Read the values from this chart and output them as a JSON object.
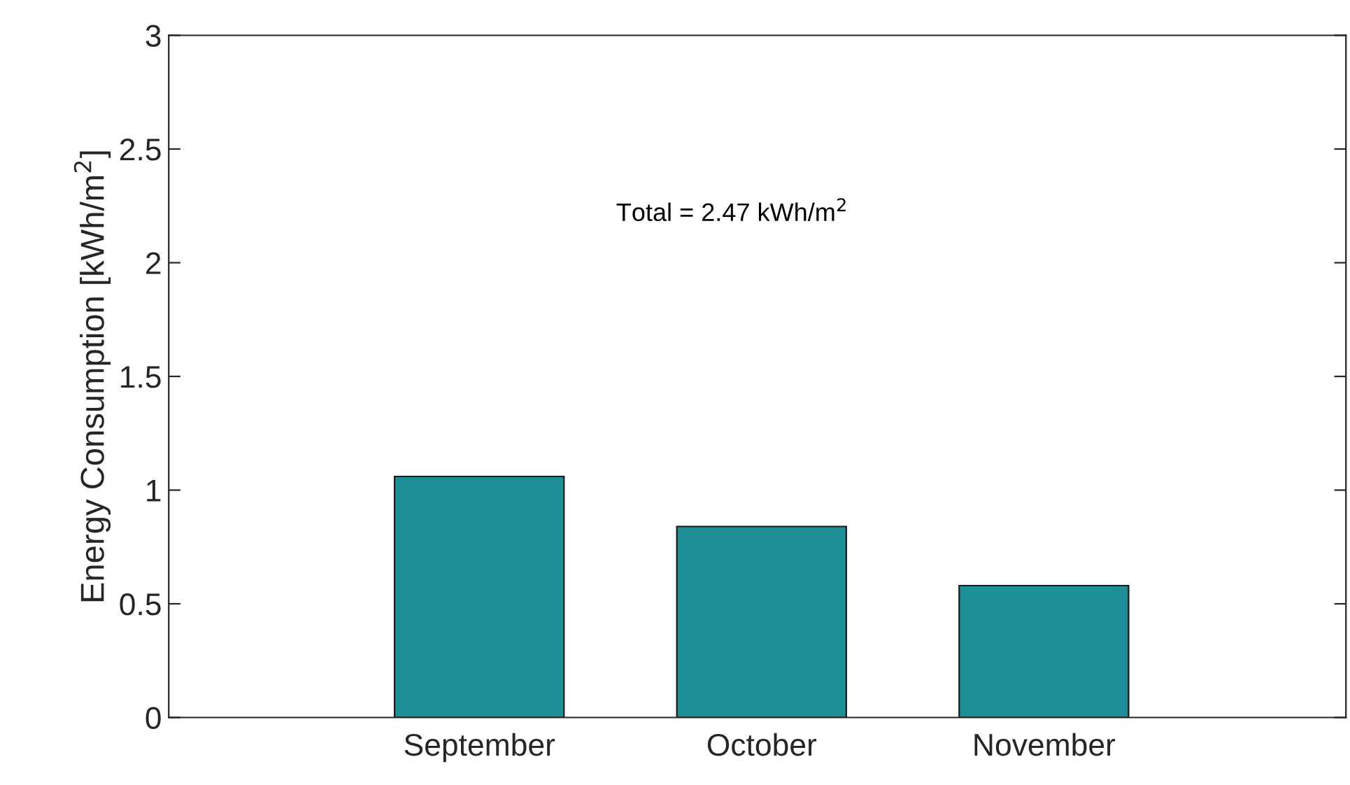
{
  "chart_data": {
    "type": "bar",
    "ylabel": "Energy Consumption [kWh/m$^{2}$]",
    "categories": [
      "September",
      "October",
      "November"
    ],
    "values": [
      1.06,
      0.84,
      0.58
    ],
    "color": "#1e8f96",
    "ylim": [
      0,
      3
    ],
    "yticks": [
      0,
      0.5,
      1,
      1.5,
      2,
      2.5,
      3
    ],
    "grid": false,
    "annotations": [
      "Total = 2.47 kWh/m$^{2}$"
    ]
  }
}
